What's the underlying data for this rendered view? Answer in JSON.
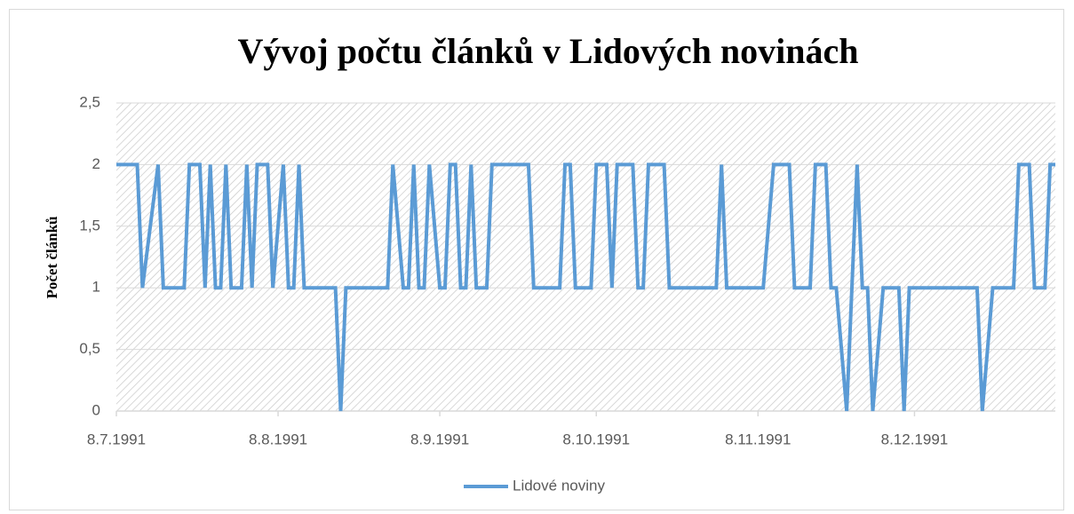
{
  "chart_data": {
    "type": "line",
    "title": "Vývoj počtu článků v Lidových novinách",
    "y_label": "Počet článků",
    "xlim": [
      "8.7.1991",
      "4.1.1992"
    ],
    "xticks": [
      "8.7.1991",
      "8.8.1991",
      "8.9.1991",
      "8.10.1991",
      "8.11.1991",
      "8.12.1991"
    ],
    "ylim": [
      0,
      2.5
    ],
    "yticks": [
      0,
      {
        "value": 0.5,
        "label": "0,5"
      },
      1,
      {
        "value": 1.5,
        "label": "1,5"
      },
      2,
      {
        "value": 2.5,
        "label": "2,5"
      }
    ],
    "grid": true,
    "legend": "bottom",
    "x": [
      "8.7.1991",
      "12.7.1991",
      "13.7.1991",
      "16.7.1991",
      "17.7.1991",
      "21.7.1991",
      "22.7.1991",
      "24.7.1991",
      "25.7.1991",
      "26.7.1991",
      "27.7.1991",
      "28.7.1991",
      "29.7.1991",
      "30.7.1991",
      "1.8.1991",
      "2.8.1991",
      "3.8.1991",
      "4.8.1991",
      "6.8.1991",
      "7.8.1991",
      "9.8.1991",
      "10.8.1991",
      "11.8.1991",
      "12.8.1991",
      "13.8.1991",
      "19.8.1991",
      "20.8.1991",
      "21.8.1991",
      "29.8.1991",
      "30.8.1991",
      "1.9.1991",
      "2.9.1991",
      "3.9.1991",
      "4.9.1991",
      "5.9.1991",
      "6.9.1991",
      "8.9.1991",
      "9.9.1991",
      "10.9.1991",
      "11.9.1991",
      "12.9.1991",
      "13.9.1991",
      "14.9.1991",
      "15.9.1991",
      "17.9.1991",
      "18.9.1991",
      "25.9.1991",
      "26.9.1991",
      "1.10.1991",
      "2.10.1991",
      "3.10.1991",
      "4.10.1991",
      "7.10.1991",
      "8.10.1991",
      "10.10.1991",
      "11.10.1991",
      "12.10.1991",
      "15.10.1991",
      "16.10.1991",
      "17.10.1991",
      "18.10.1991",
      "21.10.1991",
      "22.10.1991",
      "31.10.1991",
      "1.11.1991",
      "2.11.1991",
      "9.11.1991",
      "11.11.1991",
      "14.11.1991",
      "15.11.1991",
      "18.11.1991",
      "19.11.1991",
      "21.11.1991",
      "22.11.1991",
      "23.11.1991",
      "25.11.1991",
      "27.11.1991",
      "28.11.1991",
      "29.11.1991",
      "30.11.1991",
      "2.12.1991",
      "5.12.1991",
      "6.12.1991",
      "7.12.1991",
      "20.12.1991",
      "21.12.1991",
      "23.12.1991",
      "27.12.1991",
      "28.12.1991",
      "30.12.1991",
      "31.12.1991",
      "2.1.1992",
      "3.1.1992",
      "4.1.1992"
    ],
    "series": [
      {
        "name": "Lidové noviny",
        "color": "#5b9bd5",
        "values": [
          2,
          2,
          1,
          2,
          1,
          1,
          2,
          2,
          1,
          2,
          1,
          1,
          2,
          1,
          1,
          2,
          1,
          2,
          2,
          1,
          2,
          1,
          1,
          2,
          1,
          1,
          0,
          1,
          1,
          2,
          1,
          1,
          2,
          1,
          1,
          2,
          1,
          1,
          2,
          2,
          1,
          1,
          2,
          1,
          1,
          2,
          2,
          1,
          1,
          2,
          2,
          1,
          1,
          2,
          2,
          1,
          2,
          2,
          1,
          1,
          2,
          2,
          1,
          1,
          2,
          1,
          1,
          2,
          2,
          1,
          1,
          2,
          2,
          1,
          1,
          0,
          2,
          1,
          1,
          0,
          1,
          1,
          0,
          1,
          1,
          0,
          1,
          1,
          2,
          2,
          1,
          1,
          2,
          2
        ]
      }
    ]
  }
}
